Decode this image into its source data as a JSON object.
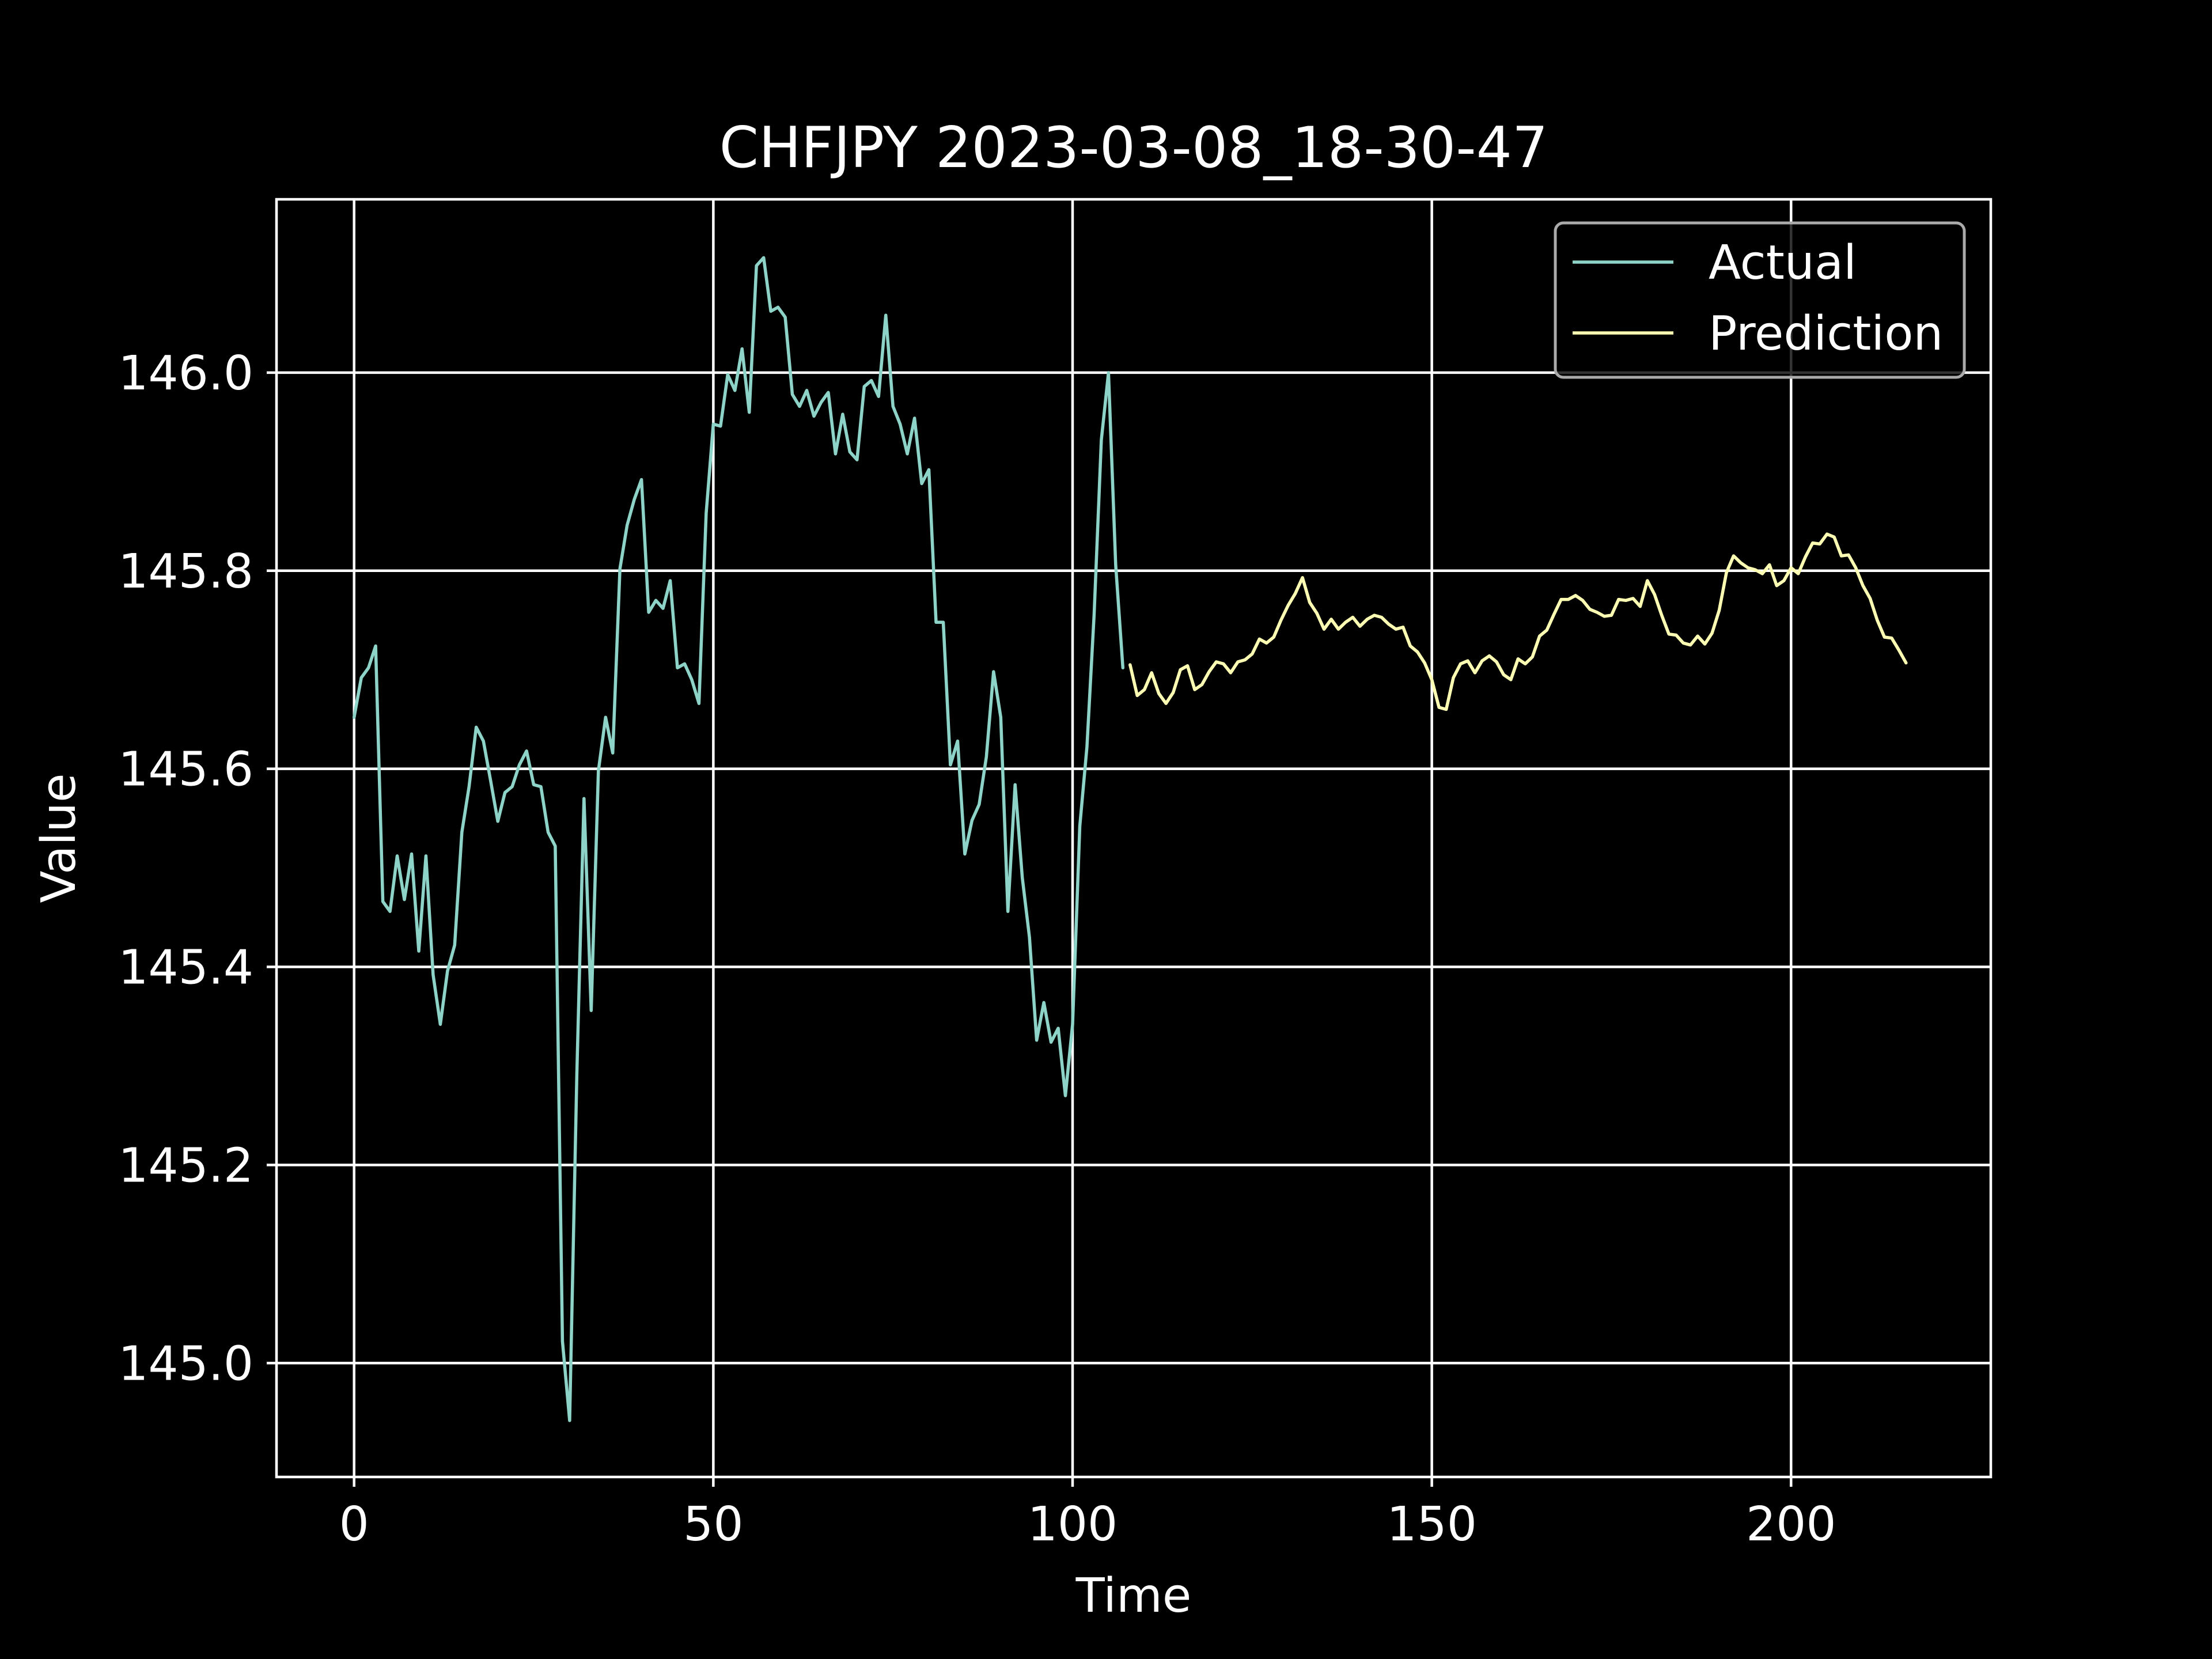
{
  "chart_data": {
    "type": "line",
    "title": "CHFJPY 2023-03-08_18-30-47",
    "xlabel": "Time",
    "ylabel": "Value",
    "xlim": [
      -10.8,
      227.8
    ],
    "ylim": [
      144.885,
      146.175
    ],
    "xticks": [
      0,
      50,
      100,
      150,
      200
    ],
    "yticks": [
      145.0,
      145.2,
      145.4,
      145.6,
      145.8,
      146.0
    ],
    "ytick_labels": [
      "145.0",
      "145.2",
      "145.4",
      "145.6",
      "145.8",
      "146.0"
    ],
    "grid": true,
    "legend_position": "top-right",
    "series": [
      {
        "name": "Actual",
        "color": "#8dd3c7",
        "x_start": 0,
        "values": [
          145.652,
          145.692,
          145.702,
          145.724,
          145.466,
          145.456,
          145.512,
          145.468,
          145.514,
          145.416,
          145.512,
          145.392,
          145.342,
          145.396,
          145.422,
          145.536,
          145.582,
          145.642,
          145.628,
          145.588,
          145.547,
          145.576,
          145.582,
          145.604,
          145.618,
          145.584,
          145.582,
          145.536,
          145.522,
          145.022,
          144.942,
          145.292,
          145.57,
          145.356,
          145.598,
          145.652,
          145.616,
          145.802,
          145.846,
          145.872,
          145.892,
          145.758,
          145.77,
          145.762,
          145.79,
          145.702,
          145.706,
          145.69,
          145.666,
          145.858,
          145.948,
          145.946,
          145.998,
          145.982,
          146.024,
          145.96,
          146.108,
          146.116,
          146.062,
          146.066,
          146.056,
          145.978,
          145.966,
          145.982,
          145.956,
          145.97,
          145.98,
          145.918,
          145.958,
          145.92,
          145.912,
          145.986,
          145.992,
          145.976,
          146.058,
          145.966,
          145.948,
          145.918,
          145.954,
          145.888,
          145.902,
          145.748,
          145.748,
          145.604,
          145.628,
          145.514,
          145.548,
          145.564,
          145.612,
          145.698,
          145.652,
          145.456,
          145.584,
          145.49,
          145.43,
          145.326,
          145.364,
          145.324,
          145.338,
          145.27,
          145.342,
          145.542,
          145.622,
          145.756,
          145.932,
          146.0,
          145.806,
          145.702
        ]
      },
      {
        "name": "Prediction",
        "color": "#ffffb3",
        "x_start": 108,
        "values": [
          145.705,
          145.674,
          145.68,
          145.697,
          145.676,
          145.666,
          145.677,
          145.7,
          145.704,
          145.68,
          145.685,
          145.698,
          145.708,
          145.706,
          145.697,
          145.708,
          145.71,
          145.716,
          145.731,
          145.727,
          145.733,
          145.75,
          145.765,
          145.777,
          145.793,
          145.768,
          145.757,
          145.741,
          145.751,
          145.741,
          145.748,
          145.753,
          145.744,
          145.751,
          145.755,
          145.753,
          145.746,
          145.741,
          145.743,
          145.724,
          145.718,
          145.707,
          145.69,
          145.662,
          145.66,
          145.692,
          145.706,
          145.709,
          145.697,
          145.709,
          145.714,
          145.708,
          145.695,
          145.69,
          145.711,
          145.706,
          145.713,
          145.734,
          145.74,
          145.756,
          145.771,
          145.771,
          145.775,
          145.77,
          145.761,
          145.758,
          145.754,
          145.755,
          145.771,
          145.77,
          145.772,
          145.764,
          145.79,
          145.776,
          145.755,
          145.736,
          145.735,
          145.727,
          145.725,
          145.734,
          145.726,
          145.737,
          145.76,
          145.798,
          145.815,
          145.808,
          145.803,
          145.801,
          145.797,
          145.806,
          145.785,
          145.79,
          145.803,
          145.797,
          145.814,
          145.828,
          145.827,
          145.837,
          145.834,
          145.815,
          145.816,
          145.803,
          145.785,
          145.772,
          145.75,
          145.733,
          145.732,
          145.72,
          145.707
        ]
      }
    ]
  }
}
